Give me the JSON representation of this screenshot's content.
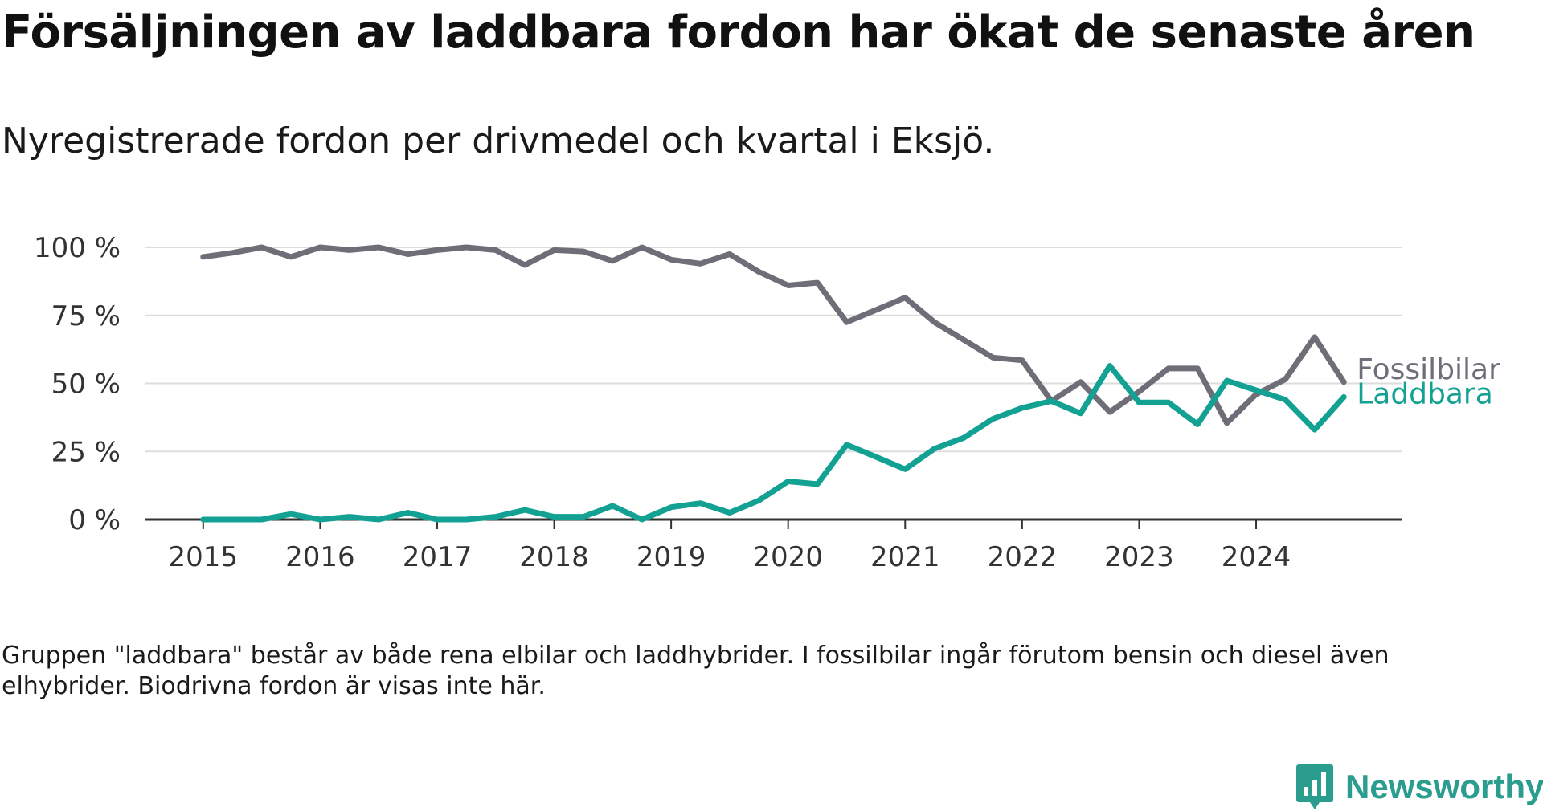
{
  "title": "Försäljningen av laddbara fordon har ökat de senaste åren",
  "subtitle": "Nyregistrerade fordon per drivmedel och kvartal i Eksjö.",
  "note": "Gruppen \"laddbara\" består av både rena elbilar och laddhybrider. I fossilbilar ingår förutom bensin och diesel även elhybrider. Biodrivna fordon är visas inte här.",
  "brand": "Newsworthy",
  "colors": {
    "fossil": "#6e6e78",
    "laddbara": "#12a193",
    "grid": "#dddddd",
    "axis": "#333333",
    "brand": "#2a9d8f"
  },
  "chart_data": {
    "type": "line",
    "title": "Försäljningen av laddbara fordon har ökat de senaste åren",
    "subtitle": "Nyregistrerade fordon per drivmedel och kvartal i Eksjö.",
    "xlabel": "",
    "ylabel": "",
    "x_unit": "year (quarterly)",
    "xlim": [
      2014.5,
      2025.25
    ],
    "ylim": [
      0,
      100
    ],
    "grid": true,
    "legend": "direct labels at line ends",
    "x_ticks": [
      2015,
      2016,
      2017,
      2018,
      2019,
      2020,
      2021,
      2022,
      2023,
      2024
    ],
    "x_tick_labels": [
      "2015",
      "2016",
      "2017",
      "2018",
      "2019",
      "2020",
      "2021",
      "2022",
      "2023",
      "2024"
    ],
    "y_ticks": [
      0,
      25,
      50,
      75,
      100
    ],
    "y_tick_labels": [
      "0 %",
      "25 %",
      "50 %",
      "75 %",
      "100 %"
    ],
    "x": [
      2015,
      2015.25,
      2015.5,
      2015.75,
      2016,
      2016.25,
      2016.5,
      2016.75,
      2017,
      2017.25,
      2017.5,
      2017.75,
      2018,
      2018.25,
      2018.5,
      2018.75,
      2019,
      2019.25,
      2019.5,
      2019.75,
      2020,
      2020.25,
      2020.5,
      2020.75,
      2021,
      2021.25,
      2021.5,
      2021.75,
      2022,
      2022.25,
      2022.5,
      2022.75,
      2023,
      2023.25,
      2023.5,
      2023.75,
      2024,
      2024.25,
      2024.5,
      2024.75
    ],
    "series": [
      {
        "name": "Fossilbilar",
        "values": [
          96.5,
          98,
          100,
          96.5,
          100,
          99,
          100,
          97.5,
          99,
          100,
          99,
          93.5,
          99,
          98.5,
          95,
          100,
          95.5,
          94,
          97.5,
          91,
          86,
          87,
          72.5,
          77,
          81.5,
          72.5,
          66,
          59.5,
          58.5,
          43.5,
          50.5,
          39.5,
          47,
          55.5,
          55.5,
          35.5,
          46,
          51.5,
          67,
          50.5
        ]
      },
      {
        "name": "Laddbara",
        "values": [
          0,
          0,
          0,
          2,
          0,
          1,
          0,
          2.5,
          0,
          0,
          1,
          3.5,
          1,
          1,
          5,
          0,
          4.5,
          6,
          2.5,
          7,
          14,
          13,
          27.5,
          23,
          18.5,
          26,
          30,
          37,
          41,
          43.5,
          39,
          56.5,
          43,
          43,
          35,
          51,
          47.5,
          44,
          33,
          45
        ]
      }
    ]
  }
}
